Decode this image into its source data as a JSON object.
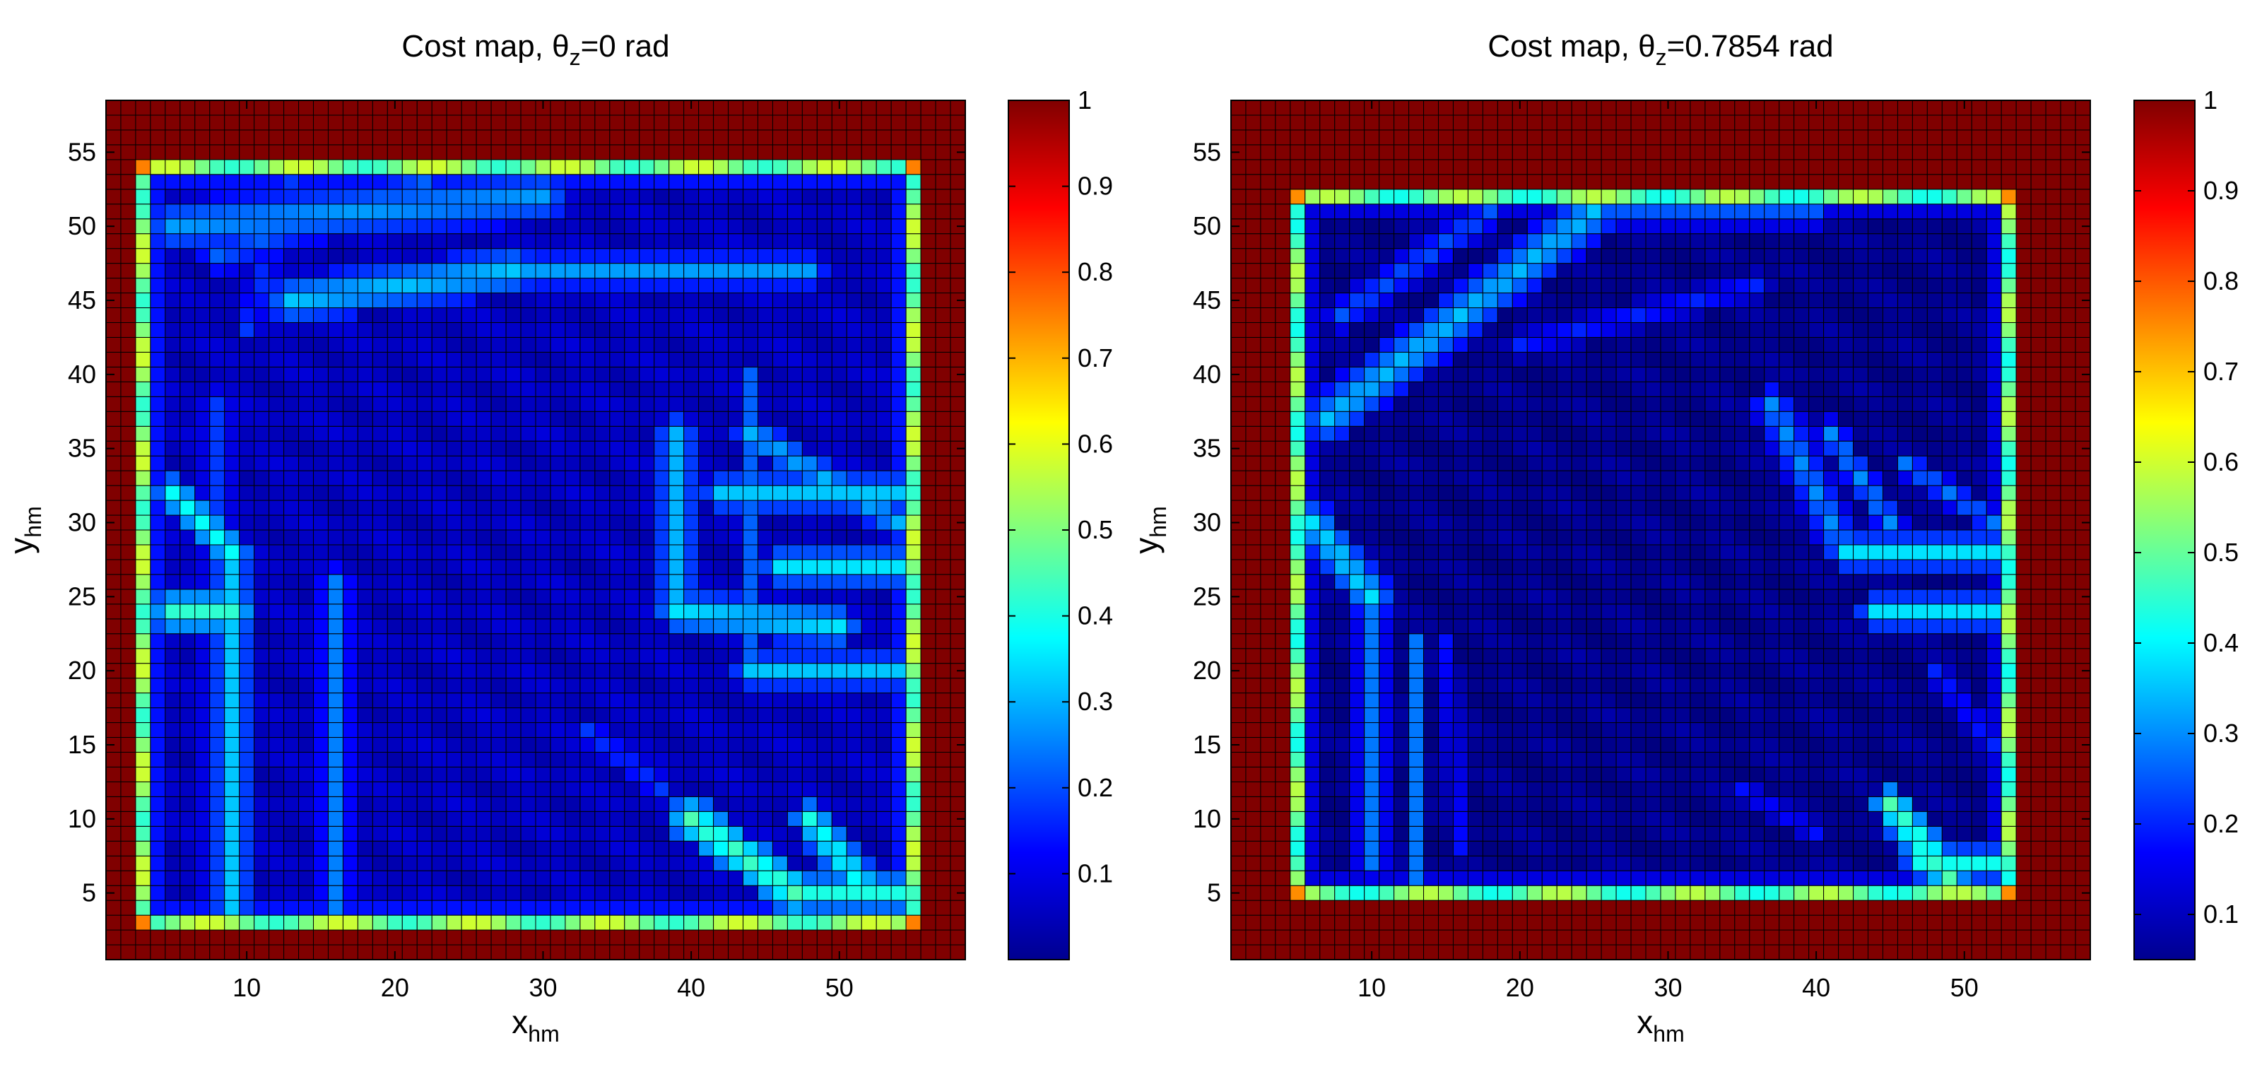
{
  "chart_data": [
    {
      "type": "heatmap",
      "title": {
        "prefix": "Cost map, θ",
        "sub": "z",
        "suffix": "=0 rad"
      },
      "xlabel": {
        "main": "x",
        "sub": "hm"
      },
      "ylabel": {
        "main": "y",
        "sub": "hm"
      },
      "xlim": [
        0.5,
        58.5
      ],
      "ylim": [
        0.5,
        58.5
      ],
      "xticks": [
        10,
        20,
        30,
        40,
        50
      ],
      "yticks": [
        5,
        10,
        15,
        20,
        25,
        30,
        35,
        40,
        45,
        50,
        55
      ],
      "grid_size": [
        58,
        58
      ],
      "inner_region": {
        "x": [
          3,
          55
        ],
        "y": [
          3,
          54
        ]
      },
      "colorbar": {
        "range": [
          0,
          1
        ],
        "ticks": [
          "0.1",
          "0.2",
          "0.3",
          "0.4",
          "0.5",
          "0.6",
          "0.7",
          "0.8",
          "0.9",
          "1"
        ],
        "colormap": "jet"
      },
      "border_value": 0.5,
      "outer_value": 1.0,
      "bands": [
        {
          "a": [
            5,
            50
          ],
          "b": [
            30,
            52
          ],
          "w": 1.8,
          "v": 0.28
        },
        {
          "a": [
            8,
            48
          ],
          "b": [
            22,
            53
          ],
          "w": 1.4,
          "v": 0.22
        },
        {
          "a": [
            13,
            45
          ],
          "b": [
            28,
            47
          ],
          "w": 1.6,
          "v": 0.32
        },
        {
          "a": [
            28,
            47
          ],
          "b": [
            48,
            47
          ],
          "w": 1.2,
          "v": 0.28
        },
        {
          "a": [
            8,
            38
          ],
          "b": [
            8,
            3
          ],
          "w": 1.2,
          "v": 0.18
        },
        {
          "a": [
            10,
            43
          ],
          "b": [
            13,
            53
          ],
          "w": 1.0,
          "v": 0.18
        },
        {
          "a": [
            5,
            32
          ],
          "b": [
            9,
            28
          ],
          "w": 1.3,
          "v": 0.38
        },
        {
          "a": [
            9,
            28
          ],
          "b": [
            9,
            3
          ],
          "w": 1.3,
          "v": 0.32
        },
        {
          "a": [
            5,
            24
          ],
          "b": [
            9,
            24
          ],
          "w": 1.5,
          "v": 0.42
        },
        {
          "a": [
            16,
            26
          ],
          "b": [
            16,
            3
          ],
          "w": 1.1,
          "v": 0.25
        },
        {
          "a": [
            39,
            36
          ],
          "b": [
            39,
            24
          ],
          "w": 1.4,
          "v": 0.3
        },
        {
          "a": [
            39,
            24
          ],
          "b": [
            50,
            23
          ],
          "w": 1.4,
          "v": 0.35
        },
        {
          "a": [
            42,
            32
          ],
          "b": [
            54,
            32
          ],
          "w": 1.3,
          "v": 0.32
        },
        {
          "a": [
            44,
            36
          ],
          "b": [
            54,
            30
          ],
          "w": 1.2,
          "v": 0.3
        },
        {
          "a": [
            46,
            27
          ],
          "b": [
            54,
            27
          ],
          "w": 1.3,
          "v": 0.35
        },
        {
          "a": [
            44,
            40
          ],
          "b": [
            44,
            20
          ],
          "w": 1.0,
          "v": 0.22
        },
        {
          "a": [
            44,
            20
          ],
          "b": [
            54,
            20
          ],
          "w": 1.2,
          "v": 0.32
        },
        {
          "a": [
            40,
            10
          ],
          "b": [
            47,
            5
          ],
          "w": 1.5,
          "v": 0.45
        },
        {
          "a": [
            47,
            5
          ],
          "b": [
            54,
            5
          ],
          "w": 1.3,
          "v": 0.4
        },
        {
          "a": [
            48,
            10
          ],
          "b": [
            52,
            5
          ],
          "w": 1.3,
          "v": 0.4
        },
        {
          "a": [
            33,
            16
          ],
          "b": [
            38,
            12
          ],
          "w": 1.0,
          "v": 0.18
        }
      ]
    },
    {
      "type": "heatmap",
      "title": {
        "prefix": "Cost map, θ",
        "sub": "z",
        "suffix": "=0.7854 rad"
      },
      "xlabel": {
        "main": "x",
        "sub": "hm"
      },
      "ylabel": {
        "main": "y",
        "sub": "hm"
      },
      "xlim": [
        0.5,
        58.5
      ],
      "ylim": [
        0.5,
        58.5
      ],
      "xticks": [
        10,
        20,
        30,
        40,
        50
      ],
      "yticks": [
        5,
        10,
        15,
        20,
        25,
        30,
        35,
        40,
        45,
        50,
        55
      ],
      "grid_size": [
        58,
        58
      ],
      "inner_region": {
        "x": [
          5,
          53
        ],
        "y": [
          5,
          52
        ]
      },
      "colorbar": {
        "range": [
          0.05,
          1
        ],
        "ticks": [
          "0.1",
          "0.2",
          "0.3",
          "0.4",
          "0.5",
          "0.6",
          "0.7",
          "0.8",
          "0.9",
          "1"
        ],
        "colormap": "jet"
      },
      "border_value": 0.5,
      "outer_value": 1.0,
      "bands": [
        {
          "a": [
            7,
            37
          ],
          "b": [
            25,
            51
          ],
          "w": 1.8,
          "v": 0.35
        },
        {
          "a": [
            25,
            51
          ],
          "b": [
            40,
            51
          ],
          "w": 1.3,
          "v": 0.25
        },
        {
          "a": [
            8,
            44
          ],
          "b": [
            18,
            51
          ],
          "w": 1.3,
          "v": 0.25
        },
        {
          "a": [
            20,
            42
          ],
          "b": [
            36,
            46
          ],
          "w": 1.1,
          "v": 0.2
        },
        {
          "a": [
            6,
            30
          ],
          "b": [
            10,
            25
          ],
          "w": 1.5,
          "v": 0.38
        },
        {
          "a": [
            10,
            25
          ],
          "b": [
            10,
            7
          ],
          "w": 1.2,
          "v": 0.28
        },
        {
          "a": [
            13,
            22
          ],
          "b": [
            13,
            6
          ],
          "w": 1.0,
          "v": 0.28
        },
        {
          "a": [
            15,
            22
          ],
          "b": [
            16,
            8
          ],
          "w": 0.9,
          "v": 0.18
        },
        {
          "a": [
            37,
            38
          ],
          "b": [
            42,
            28
          ],
          "w": 1.4,
          "v": 0.3
        },
        {
          "a": [
            42,
            28
          ],
          "b": [
            52,
            28
          ],
          "w": 1.3,
          "v": 0.38
        },
        {
          "a": [
            41,
            36
          ],
          "b": [
            45,
            30
          ],
          "w": 1.1,
          "v": 0.3
        },
        {
          "a": [
            46,
            34
          ],
          "b": [
            52,
            30
          ],
          "w": 1.0,
          "v": 0.28
        },
        {
          "a": [
            44,
            24
          ],
          "b": [
            52,
            24
          ],
          "w": 1.3,
          "v": 0.38
        },
        {
          "a": [
            45,
            11
          ],
          "b": [
            49,
            6
          ],
          "w": 1.4,
          "v": 0.48
        },
        {
          "a": [
            47,
            7
          ],
          "b": [
            52,
            7
          ],
          "w": 1.2,
          "v": 0.42
        },
        {
          "a": [
            35,
            12
          ],
          "b": [
            40,
            9
          ],
          "w": 1.0,
          "v": 0.18
        },
        {
          "a": [
            48,
            20
          ],
          "b": [
            52,
            15
          ],
          "w": 1.0,
          "v": 0.2
        }
      ]
    }
  ]
}
